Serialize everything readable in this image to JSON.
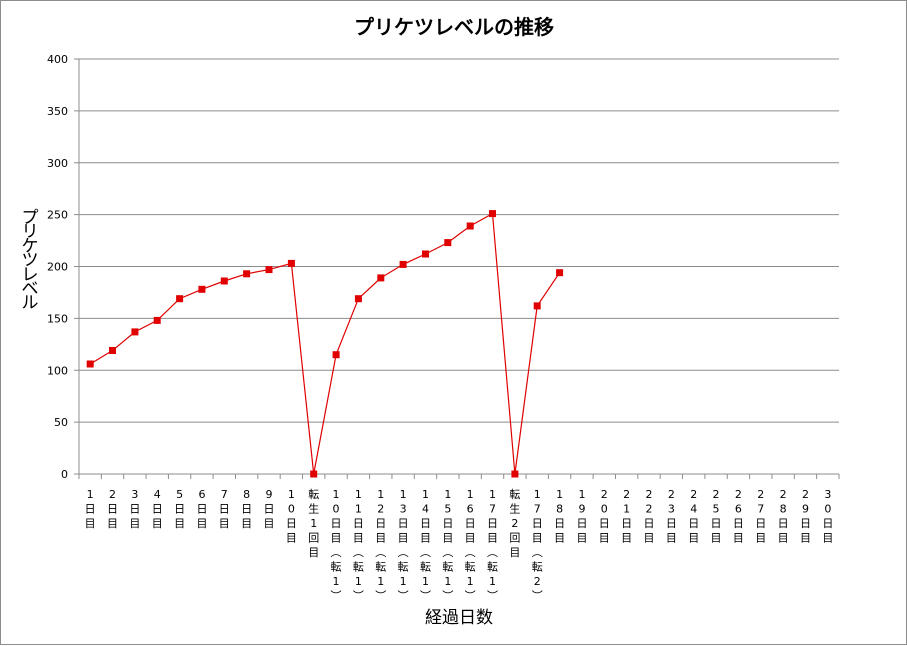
{
  "chart_data": {
    "type": "line",
    "title": "プリケツレベルの推移",
    "xlabel": "経過日数",
    "ylabel": "プリケツレベル",
    "ylim": [
      0,
      400
    ],
    "yticks": [
      0,
      50,
      100,
      150,
      200,
      250,
      300,
      350,
      400
    ],
    "grid": true,
    "legend": "none",
    "series_color": "#e00000",
    "categories": [
      "1日目",
      "2日目",
      "3日目",
      "4日目",
      "5日目",
      "6日目",
      "7日目",
      "8日目",
      "9日目",
      "10日目",
      "転生1回目",
      "10日目(転1)",
      "11日目(転1)",
      "12日目(転1)",
      "13日目(転1)",
      "14日目(転1)",
      "15日目(転1)",
      "16日目(転1)",
      "17日目(転1)",
      "転生2回目",
      "17日目(転2)",
      "18日目",
      "19日目",
      "20日目",
      "21日目",
      "22日目",
      "23日目",
      "24日目",
      "25日目",
      "26日目",
      "27日目",
      "28日目",
      "29日目",
      "30日目"
    ],
    "values": [
      106,
      119,
      137,
      148,
      169,
      178,
      186,
      193,
      197,
      203,
      0,
      115,
      169,
      189,
      202,
      212,
      223,
      239,
      251,
      0,
      162,
      194,
      null,
      null,
      null,
      null,
      null,
      null,
      null,
      null,
      null,
      null,
      null,
      null
    ]
  }
}
